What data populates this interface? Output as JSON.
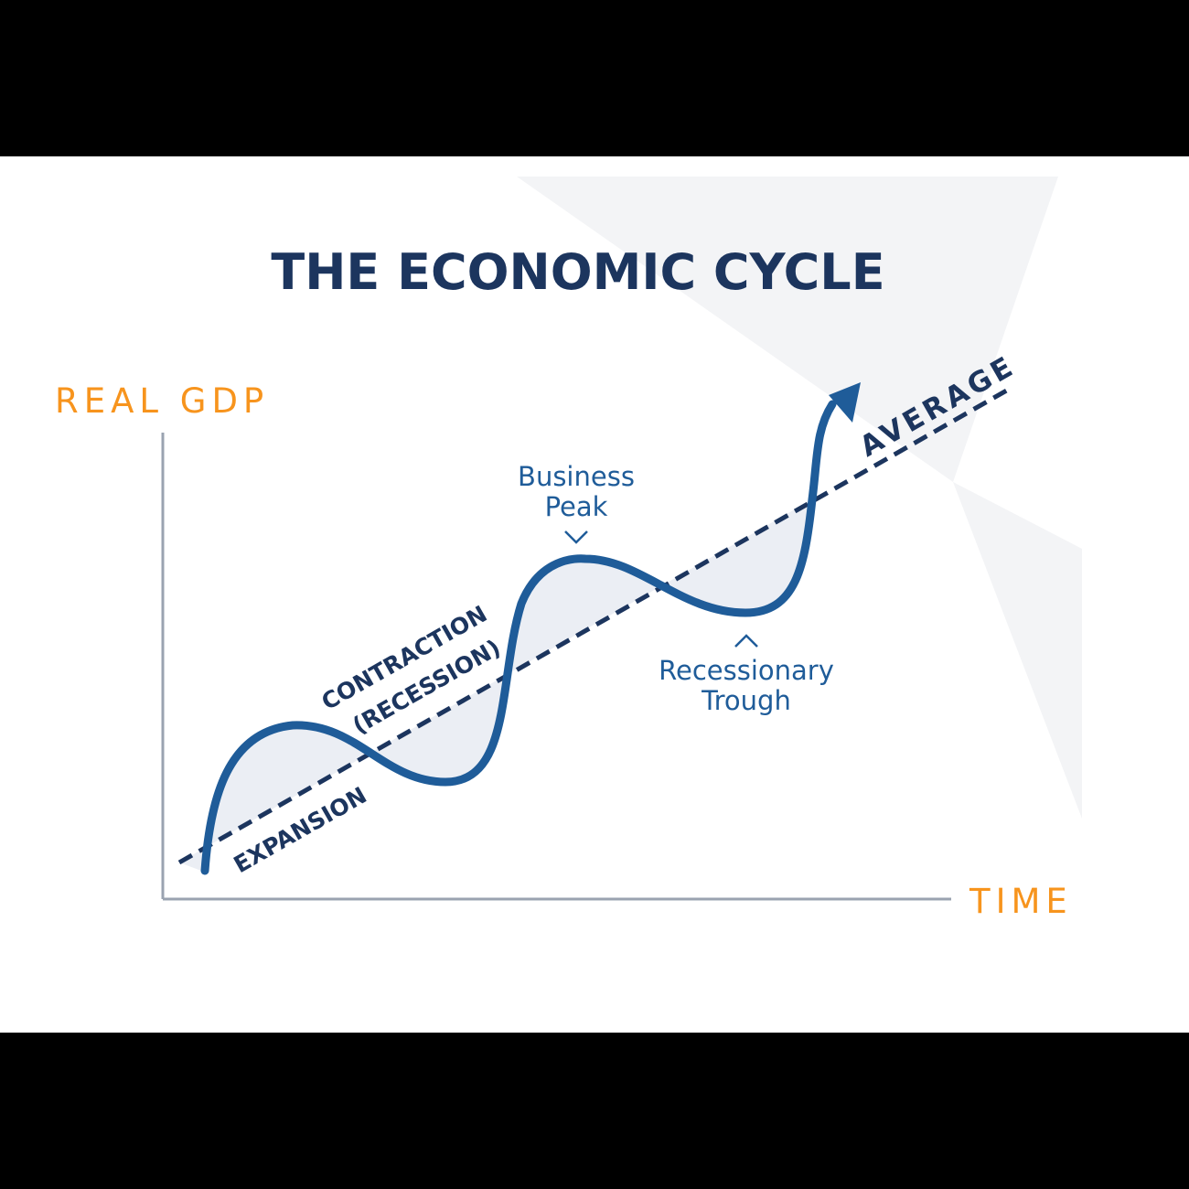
{
  "title": "THE ECONOMIC CYCLE",
  "axes": {
    "y_label": "REAL GDP",
    "x_label": "TIME"
  },
  "labels": {
    "average": "AVERAGE",
    "expansion": "EXPANSION",
    "contraction_line1": "CONTRACTION",
    "contraction_line2": "(RECESSION)",
    "peak_line1": "Business",
    "peak_line2": "Peak",
    "trough_line1": "Recessionary",
    "trough_line2": "Trough"
  },
  "colors": {
    "title": "#1c355e",
    "axis_label": "#f7941d",
    "curve": "#1f5c99",
    "trend_line": "#1c355e",
    "axis_line": "#9aa3b0",
    "shading": "#e7ebf2",
    "background": "#ffffff",
    "letterbox": "#000000"
  }
}
